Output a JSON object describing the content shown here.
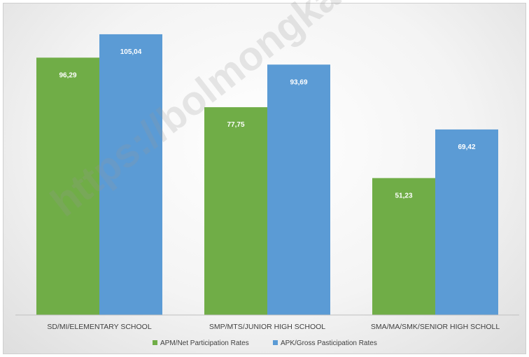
{
  "chart_data": {
    "type": "bar",
    "categories": [
      "SD/MI/ELEMENTARY SCHOOL",
      "SMP/MTS/JUNIOR HIGH SCHOOL",
      "SMA/MA/SMK/SENIOR HIGH SCHOLL"
    ],
    "series": [
      {
        "name": "APM/Net Participation Rates",
        "values": [
          96.29,
          77.75,
          51.23
        ],
        "labels": [
          "96,29",
          "77,75",
          "51,23"
        ],
        "color": "#70ad47"
      },
      {
        "name": "APK/Gross Pasticipation Rates",
        "values": [
          105.04,
          93.69,
          69.42
        ],
        "labels": [
          "105,04",
          "93,69",
          "69,42"
        ],
        "color": "#5b9bd5"
      }
    ],
    "ylim": [
      0,
      110
    ],
    "grid": false,
    "legend": "bottom",
    "watermark": "https://bolmongkab.bps.go.id"
  }
}
